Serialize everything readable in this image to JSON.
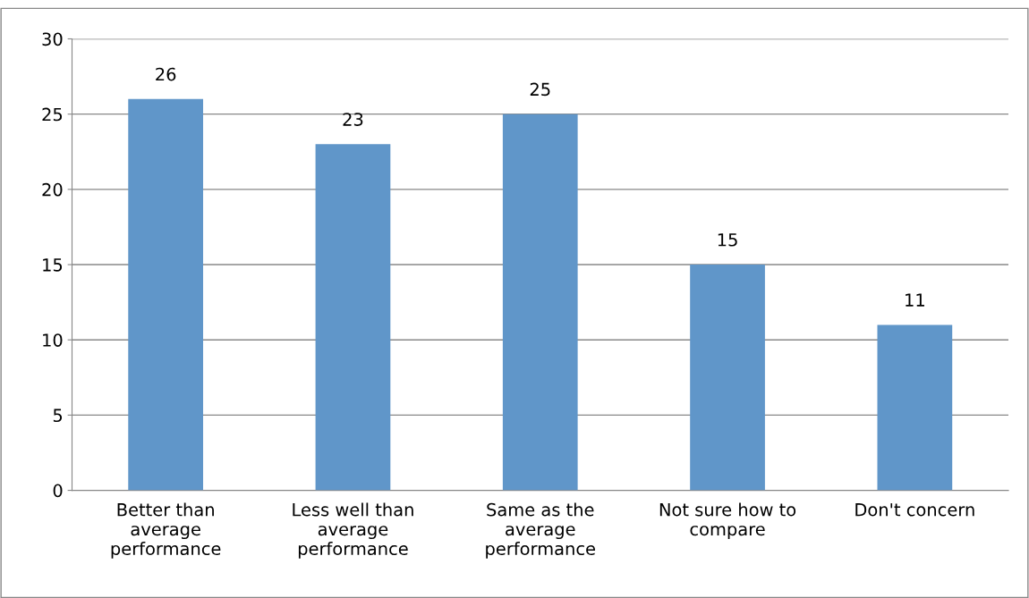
{
  "chart_data": {
    "type": "bar",
    "categories": [
      "Better than\naverage\nperformance",
      "Less well than\naverage\nperformance",
      "Same as the\naverage\nperformance",
      "Not sure how to\ncompare",
      "Don't concern"
    ],
    "values": [
      26,
      23,
      25,
      15,
      11
    ],
    "color": "#6096c9",
    "ylim": [
      0,
      30
    ],
    "yticks": [
      0,
      5,
      10,
      15,
      20,
      25,
      30
    ],
    "grid": "y",
    "data_labels": true,
    "legend": false
  }
}
